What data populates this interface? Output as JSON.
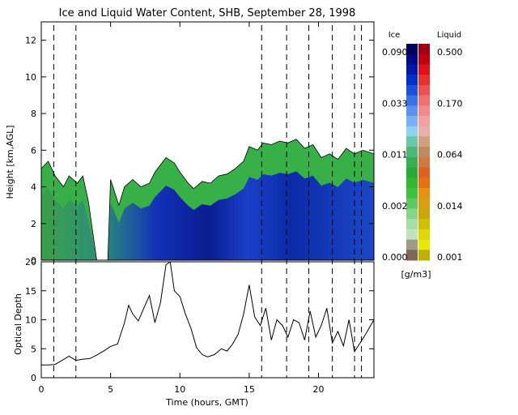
{
  "chart_data": [
    {
      "type": "heatmap",
      "title": "Ice and Liquid Water Content, SHB, September 28, 1998",
      "ylabel": "Height [km,AGL]",
      "xlim": [
        0,
        24
      ],
      "ylim": [
        0,
        13
      ],
      "yticks": [
        "0",
        "2",
        "4",
        "6",
        "8",
        "10",
        "12"
      ],
      "cloud_top_km": [
        [
          0.0,
          5.0
        ],
        [
          0.5,
          5.4
        ],
        [
          1.0,
          4.6
        ],
        [
          1.6,
          4.0
        ],
        [
          2.0,
          4.6
        ],
        [
          2.6,
          4.2
        ],
        [
          3.0,
          4.6
        ],
        [
          3.4,
          3.2
        ],
        [
          4.0,
          0.0
        ],
        [
          4.8,
          0.0
        ],
        [
          5.0,
          4.4
        ],
        [
          5.6,
          3.0
        ],
        [
          6.0,
          4.0
        ],
        [
          6.6,
          4.4
        ],
        [
          7.2,
          4.0
        ],
        [
          7.8,
          4.2
        ],
        [
          8.2,
          4.8
        ],
        [
          8.6,
          5.2
        ],
        [
          9.0,
          5.6
        ],
        [
          9.6,
          5.3
        ],
        [
          10.0,
          4.8
        ],
        [
          10.6,
          4.2
        ],
        [
          11.0,
          3.9
        ],
        [
          11.6,
          4.3
        ],
        [
          12.2,
          4.2
        ],
        [
          12.8,
          4.6
        ],
        [
          13.4,
          4.7
        ],
        [
          14.0,
          5.0
        ],
        [
          14.6,
          5.4
        ],
        [
          15.0,
          6.2
        ],
        [
          15.6,
          6.0
        ],
        [
          16.0,
          6.4
        ],
        [
          16.6,
          6.3
        ],
        [
          17.2,
          6.5
        ],
        [
          17.8,
          6.4
        ],
        [
          18.4,
          6.6
        ],
        [
          19.0,
          6.1
        ],
        [
          19.6,
          6.3
        ],
        [
          20.2,
          5.6
        ],
        [
          20.8,
          5.8
        ],
        [
          21.4,
          5.5
        ],
        [
          22.0,
          6.1
        ],
        [
          22.6,
          5.8
        ],
        [
          23.2,
          6.0
        ],
        [
          24.0,
          5.8
        ]
      ],
      "ice_colorbar": {
        "label": "Ice",
        "ticks": [
          "0.090",
          "0.033",
          "0.011",
          "0.002",
          "0.000"
        ],
        "colors": [
          "#00005a",
          "#000a80",
          "#0018a8",
          "#0030c8",
          "#1a50dc",
          "#3a70e8",
          "#5a92ee",
          "#7ab0f2",
          "#8ed0f0",
          "#6ac8a8",
          "#4cb878",
          "#38b050",
          "#2aa838",
          "#30b830",
          "#40c040",
          "#60c860",
          "#88d488",
          "#a8dca8",
          "#c0e4c0",
          "#a09a88",
          "#806858"
        ]
      },
      "liquid_colorbar": {
        "label": "Liquid",
        "ticks": [
          "0.500",
          "0.170",
          "0.064",
          "0.014",
          "0.001"
        ],
        "colors": [
          "#a00010",
          "#c00010",
          "#e01018",
          "#e83028",
          "#ee5050",
          "#f07070",
          "#f28a8a",
          "#f2a0a0",
          "#e8b0a8",
          "#d0a080",
          "#c08a60",
          "#d07840",
          "#e06020",
          "#e87010",
          "#e89010",
          "#d8a010",
          "#c8a808",
          "#d0c000",
          "#e0d800",
          "#e8e800",
          "#c0b000"
        ]
      },
      "units": "[g/m3]"
    },
    {
      "type": "line",
      "xlabel": "Time (hours, GMT)",
      "ylabel": "Optical Depth",
      "xlim": [
        0,
        24
      ],
      "ylim": [
        0,
        20
      ],
      "xticks": [
        "0",
        "5",
        "10",
        "15",
        "20"
      ],
      "yticks": [
        "0",
        "5",
        "10",
        "15",
        "20"
      ],
      "x": [
        0.0,
        0.5,
        1.0,
        1.5,
        2.0,
        2.5,
        3.0,
        3.5,
        4.0,
        4.5,
        5.0,
        5.5,
        6.0,
        6.3,
        6.6,
        7.0,
        7.4,
        7.8,
        8.2,
        8.6,
        9.0,
        9.3,
        9.6,
        10.0,
        10.4,
        10.8,
        11.2,
        11.6,
        12.0,
        12.5,
        13.0,
        13.4,
        13.8,
        14.2,
        14.6,
        15.0,
        15.4,
        15.8,
        16.2,
        16.6,
        17.0,
        17.4,
        17.8,
        18.2,
        18.6,
        19.0,
        19.4,
        19.8,
        20.2,
        20.6,
        21.0,
        21.4,
        21.8,
        22.2,
        22.6,
        23.0,
        23.4,
        24.0
      ],
      "values": [
        2.2,
        2.2,
        2.3,
        3.0,
        3.7,
        3.0,
        3.2,
        3.3,
        3.9,
        4.6,
        5.4,
        5.8,
        9.5,
        12.5,
        11.0,
        9.8,
        12.0,
        14.2,
        9.5,
        13.0,
        19.5,
        20.0,
        15.0,
        14.0,
        11.0,
        8.5,
        5.2,
        4.0,
        3.6,
        4.0,
        5.0,
        4.6,
        5.8,
        7.5,
        11.0,
        16.0,
        10.5,
        9.0,
        12.0,
        6.5,
        10.0,
        9.0,
        7.0,
        10.0,
        9.5,
        6.5,
        11.5,
        7.0,
        9.0,
        12.0,
        6.0,
        8.0,
        5.5,
        10.0,
        4.5,
        6.0,
        7.5,
        10.0
      ]
    }
  ],
  "dashed_marker_hours": [
    0.9,
    2.5,
    15.9,
    17.7,
    19.3,
    21.0,
    22.6,
    23.1
  ],
  "colors": {
    "curve": "#000000",
    "frame": "#000000",
    "background": "#ffffff"
  }
}
